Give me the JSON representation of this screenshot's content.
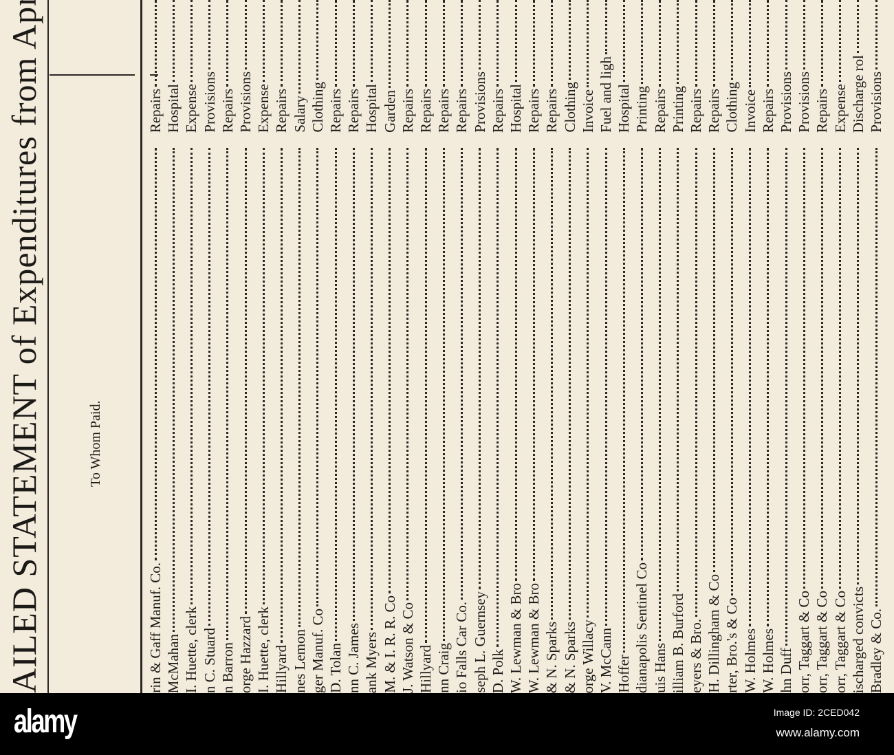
{
  "document": {
    "title": "AILED STATEMENT of Expenditures from Apr",
    "column_header": "To Whom Paid.",
    "rows": [
      {
        "to_whom": "rin & Gaff Manuf. Co.",
        "purpose": "Repairs"
      },
      {
        "to_whom": "McMahan",
        "purpose": "Hospital"
      },
      {
        "to_whom": "I. Huette, clerk",
        "purpose": "Expense"
      },
      {
        "to_whom": "n C. Stuard",
        "purpose": "Provisions"
      },
      {
        "to_whom": "n Barron",
        "purpose": "Repairs"
      },
      {
        "to_whom": "orge Hazzard",
        "purpose": "Provisions"
      },
      {
        "to_whom": "I. Huette, clerk",
        "purpose": "Expense"
      },
      {
        "to_whom": "Hillyard",
        "purpose": "Repairs"
      },
      {
        "to_whom": "nes Lemon",
        "purpose": "Salary"
      },
      {
        "to_whom": "ger Manuf. Co",
        "purpose": "Clothing"
      },
      {
        "to_whom": "D. Tolan",
        "purpose": "Repairs"
      },
      {
        "to_whom": "nn C. James",
        "purpose": "Repairs"
      },
      {
        "to_whom": "ank Myers",
        "purpose": "Hospital"
      },
      {
        "to_whom": "M. & I. R. R. Co",
        "purpose": "Garden"
      },
      {
        "to_whom": "J. Watson & Co",
        "purpose": "Repairs"
      },
      {
        "to_whom": "Hillyard",
        "purpose": "Repairs"
      },
      {
        "to_whom": "nn Craig",
        "purpose": "Repairs"
      },
      {
        "to_whom": "io Falls Car Co.",
        "purpose": "Repairs"
      },
      {
        "to_whom": "seph L. Guernsey",
        "purpose": "Provisions"
      },
      {
        "to_whom": "D. Polk",
        "purpose": "Repairs"
      },
      {
        "to_whom": "W. Lewman & Bro",
        "purpose": "Hospital"
      },
      {
        "to_whom": "W. Lewman & Bro",
        "purpose": "Repairs"
      },
      {
        "to_whom": "& N. Sparks",
        "purpose": "Repairs"
      },
      {
        "to_whom": "& N. Sparks",
        "purpose": "Clothing"
      },
      {
        "to_whom": "orge Willacy",
        "purpose": "Invoice"
      },
      {
        "to_whom": "V. McCann",
        "purpose": "Fuel and ligh"
      },
      {
        "to_whom": "Hoffer",
        "purpose": "Hospital"
      },
      {
        "to_whom": "dianapolis Sentinel Co",
        "purpose": "Printing"
      },
      {
        "to_whom": "uis Hans",
        "purpose": "Repairs"
      },
      {
        "to_whom": "illiam B. Burford",
        "purpose": "Printing"
      },
      {
        "to_whom": "eyers & Bro.",
        "purpose": "Repairs"
      },
      {
        "to_whom": "H. Dillingham & Co",
        "purpose": "Repairs"
      },
      {
        "to_whom": "rter, Bro.'s & Co",
        "purpose": "Clothing"
      },
      {
        "to_whom": "W. Holmes",
        "purpose": "Invoice"
      },
      {
        "to_whom": "W. Holmes",
        "purpose": "Repairs"
      },
      {
        "to_whom": "hn Duff",
        "purpose": "Provisions"
      },
      {
        "to_whom": "orr, Taggart & Co",
        "purpose": "Provisions"
      },
      {
        "to_whom": "orr, Taggart & Co",
        "purpose": "Repairs"
      },
      {
        "to_whom": "orr, Taggart & Co",
        "purpose": "Expense"
      },
      {
        "to_whom": "ischarged convicts",
        "purpose": "Discharge rol"
      },
      {
        "to_whom": "Bradley & Co.",
        "purpose": "Provisions"
      }
    ]
  },
  "watermark": {
    "logo": "alamy",
    "image_id": "Image ID: 2CED042",
    "site": "www.alamy.com"
  },
  "colors": {
    "paper": "#f3ecdd",
    "ink": "#1c1a17",
    "band": "#000000"
  }
}
